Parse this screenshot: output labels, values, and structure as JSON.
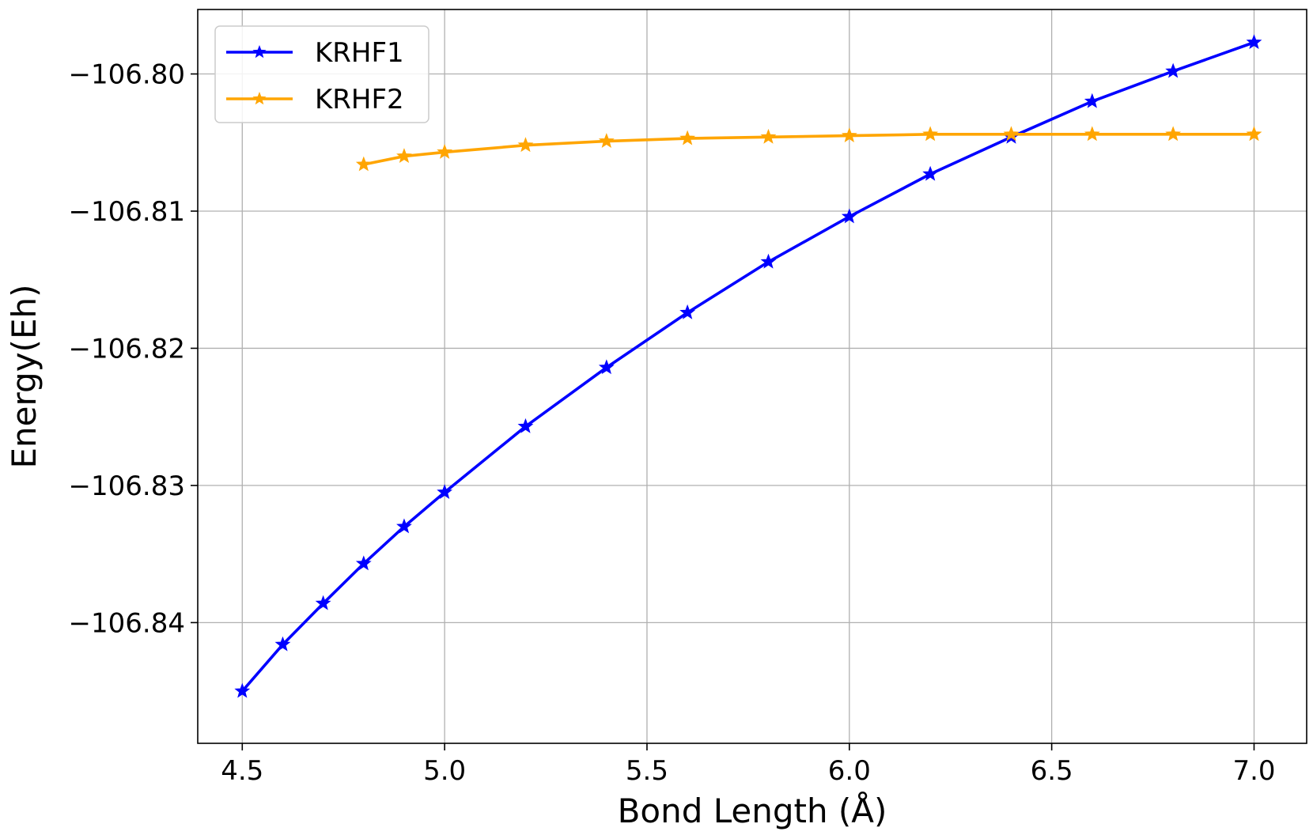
{
  "chart_data": {
    "type": "line",
    "title": "",
    "xlabel": "Bond Length (Å)",
    "ylabel": "Energy(Eh)",
    "xlim": [
      4.39,
      7.13
    ],
    "ylim": [
      -106.8488,
      -106.7953
    ],
    "xticks": [
      4.5,
      5.0,
      5.5,
      6.0,
      6.5,
      7.0
    ],
    "xtick_labels": [
      "4.5",
      "5.0",
      "5.5",
      "6.0",
      "6.5",
      "7.0"
    ],
    "yticks": [
      -106.84,
      -106.83,
      -106.82,
      -106.81,
      -106.8
    ],
    "ytick_labels": [
      "−106.84",
      "−106.83",
      "−106.82",
      "−106.81",
      "−106.80"
    ],
    "grid": true,
    "legend_position": "top-left",
    "marker": "star",
    "series": [
      {
        "name": "KRHF1",
        "color": "#0000ff",
        "x": [
          4.5,
          4.6,
          4.7,
          4.8,
          4.9,
          5.0,
          5.2,
          5.4,
          5.6,
          5.8,
          6.0,
          6.2,
          6.4,
          6.6,
          6.8,
          7.0
        ],
        "y": [
          -106.845,
          -106.8416,
          -106.8386,
          -106.8357,
          -106.833,
          -106.8305,
          -106.8257,
          -106.8214,
          -106.8174,
          -106.8137,
          -106.8104,
          -106.8073,
          -106.8046,
          -106.802,
          -106.7998,
          -106.7977
        ]
      },
      {
        "name": "KRHF2",
        "color": "#ffa500",
        "x": [
          4.8,
          4.9,
          5.0,
          5.2,
          5.4,
          5.6,
          5.8,
          6.0,
          6.2,
          6.4,
          6.6,
          6.8,
          7.0
        ],
        "y": [
          -106.8066,
          -106.806,
          -106.8057,
          -106.8052,
          -106.8049,
          -106.8047,
          -106.8046,
          -106.8045,
          -106.8044,
          -106.8044,
          -106.8044,
          -106.8044,
          -106.8044
        ]
      }
    ]
  }
}
